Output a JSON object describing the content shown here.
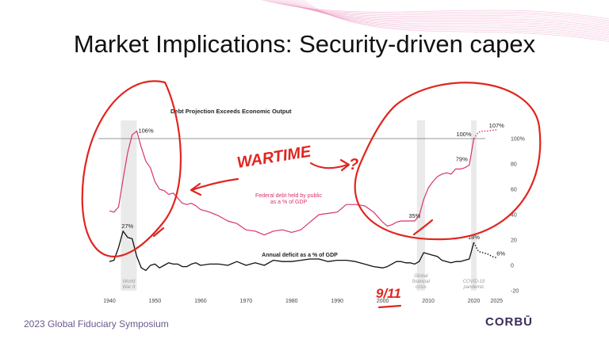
{
  "slide": {
    "title": "Market Implications: Security-driven capex",
    "footer_left": "2023 Global Fiduciary Symposium",
    "footer_right": "CORBŪ"
  },
  "colors": {
    "debt_line": "#d9336b",
    "deficit_line": "#111111",
    "annotation": "#e0261f",
    "shade": "#e6e6e6",
    "wave": "#e98fbf"
  },
  "chart_data": {
    "type": "line",
    "title": "Debt Projection Exceeds Economic Output",
    "xlim": [
      1940,
      2026
    ],
    "ylim": [
      -20,
      110
    ],
    "x_ticks": [
      1940,
      1950,
      1960,
      1970,
      1980,
      1990,
      2000,
      2010,
      2020,
      2025
    ],
    "y_ticks": [
      {
        "value": 100,
        "label": "100%"
      },
      {
        "value": 80,
        "label": "80"
      },
      {
        "value": 60,
        "label": "60"
      },
      {
        "value": 40,
        "label": "40"
      },
      {
        "value": 20,
        "label": "20"
      },
      {
        "value": 0,
        "label": "0"
      },
      {
        "value": -20,
        "label": "-20"
      }
    ],
    "reference_line": 100,
    "shaded_periods": [
      {
        "start": 1942.5,
        "end": 1946,
        "label": [
          "World",
          "War II"
        ]
      },
      {
        "start": 2007.5,
        "end": 2009.3,
        "label": [
          "Global",
          "financial",
          "crisis"
        ]
      },
      {
        "start": 2019.4,
        "end": 2020.6,
        "label": [
          "COVID-19",
          "pandemic"
        ]
      }
    ],
    "series": [
      {
        "name": "Federal debt held by public as a % of GDP",
        "label_lines": [
          "Federal debt held by public",
          "as a % of GDP"
        ],
        "x": [
          1940,
          1941,
          1942,
          1943,
          1944,
          1945,
          1946,
          1947,
          1948,
          1949,
          1950,
          1951,
          1952,
          1953,
          1954,
          1955,
          1956,
          1957,
          1958,
          1959,
          1960,
          1962,
          1964,
          1966,
          1968,
          1970,
          1972,
          1974,
          1976,
          1978,
          1980,
          1982,
          1984,
          1986,
          1988,
          1990,
          1992,
          1994,
          1996,
          1998,
          2000,
          2001,
          2002,
          2003,
          2004,
          2005,
          2006,
          2007,
          2008,
          2009,
          2010,
          2011,
          2012,
          2013,
          2014,
          2015,
          2016,
          2017,
          2018,
          2019,
          2020
        ],
        "y": [
          43,
          42,
          46,
          68,
          89,
          103,
          106,
          93,
          82,
          77,
          66,
          60,
          59,
          56,
          57,
          53,
          49,
          48,
          49,
          47,
          44,
          42,
          39,
          35,
          33,
          28,
          27,
          24,
          27,
          28,
          26,
          28,
          34,
          40,
          41,
          42,
          48,
          48,
          47,
          42,
          34,
          31,
          32,
          34,
          35,
          35,
          35,
          35,
          39,
          52,
          61,
          66,
          70,
          72,
          73,
          72,
          76,
          76,
          77,
          79,
          100
        ],
        "projection": {
          "x": [
            2020,
            2021,
            2022,
            2023,
            2024,
            2025
          ],
          "y": [
            100,
            105,
            106,
            106,
            106.5,
            107
          ]
        }
      },
      {
        "name": "Annual deficit as a % of GDP",
        "label_lines": [
          "Annual deficit as a % of GDP"
        ],
        "x": [
          1940,
          1941,
          1942,
          1943,
          1944,
          1945,
          1946,
          1947,
          1948,
          1949,
          1950,
          1951,
          1952,
          1953,
          1954,
          1955,
          1956,
          1957,
          1958,
          1959,
          1960,
          1962,
          1964,
          1966,
          1968,
          1970,
          1972,
          1974,
          1976,
          1978,
          1980,
          1982,
          1984,
          1986,
          1988,
          1990,
          1992,
          1994,
          1996,
          1998,
          2000,
          2001,
          2002,
          2003,
          2004,
          2005,
          2006,
          2007,
          2008,
          2009,
          2010,
          2011,
          2012,
          2013,
          2014,
          2015,
          2016,
          2017,
          2018,
          2019,
          2020
        ],
        "y": [
          3,
          4,
          14,
          27,
          22,
          21,
          7,
          -2,
          -4,
          0,
          1,
          -2,
          0,
          2,
          1,
          1,
          -1,
          -1,
          1,
          2,
          0,
          1,
          1,
          0,
          3,
          0,
          2,
          0,
          4,
          3,
          3,
          4,
          5,
          5,
          3,
          4,
          4,
          3,
          1,
          -1,
          -2,
          -1,
          1,
          3,
          3,
          2,
          2,
          1,
          3,
          10,
          9,
          8,
          7,
          4,
          3,
          2,
          3,
          3,
          4,
          5,
          18
        ],
        "projection": {
          "x": [
            2020,
            2021,
            2022,
            2023,
            2024,
            2025
          ],
          "y": [
            18,
            11,
            10,
            9,
            7,
            6
          ]
        }
      }
    ],
    "data_labels": {
      "debt_1946": "106%",
      "deficit_1943": "27%",
      "debt_2007": "35%",
      "debt_2019": "79%",
      "debt_2020": "100%",
      "debt_2025": "107%",
      "deficit_2020": "18%",
      "deficit_2025": "6%"
    },
    "handwritten_annotations": {
      "wartime": "WARTIME",
      "question": "?",
      "nine_eleven": "9/11"
    }
  }
}
